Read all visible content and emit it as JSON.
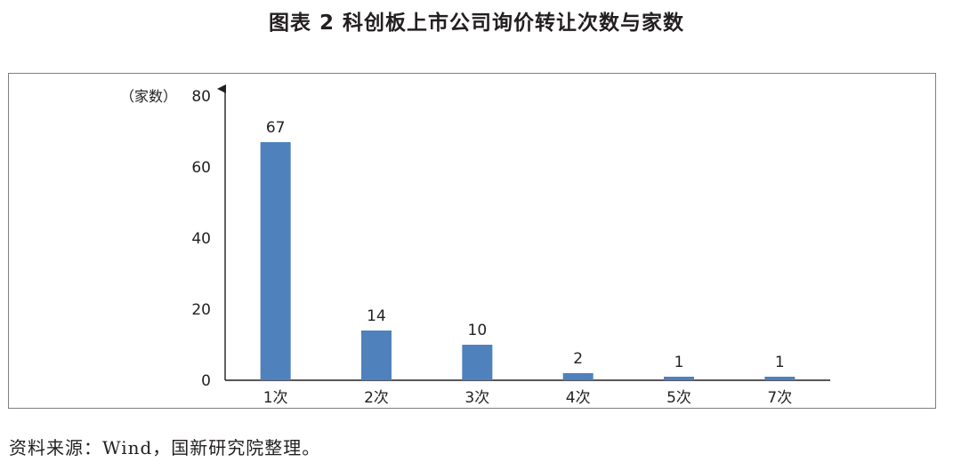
{
  "figure": {
    "title": "图表 2  科创板上市公司询价转让次数与家数",
    "source": "资料来源：Wind，国新研究院整理。"
  },
  "chart_data": {
    "type": "bar",
    "title": "图表 2  科创板上市公司询价转让次数与家数",
    "xlabel": "",
    "ylabel": "（家数）",
    "ylim": [
      0,
      80
    ],
    "yticks": [
      0,
      20,
      40,
      60,
      80
    ],
    "categories": [
      "1次",
      "2次",
      "3次",
      "4次",
      "5次",
      "7次"
    ],
    "values": [
      67,
      14,
      10,
      2,
      1,
      1
    ],
    "data_labels": [
      "67",
      "14",
      "10",
      "2",
      "1",
      "1"
    ],
    "bar_color": "#4f81bd",
    "grid": false,
    "legend": "none"
  }
}
